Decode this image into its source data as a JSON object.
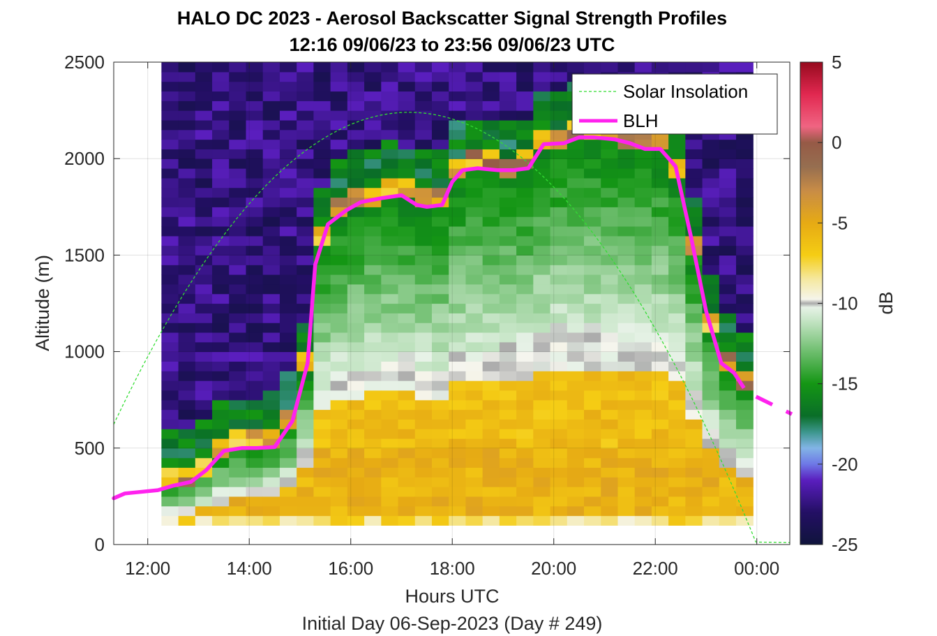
{
  "chart_data": {
    "type": "heatmap",
    "title": "HALO DC 2023 - Aerosol Backscatter Signal Strength Profiles",
    "subtitle": "12:16 09/06/23 to 23:56 09/06/23  UTC",
    "xlabel": "Hours UTC",
    "ylabel": "Altitude (m)",
    "footer": "Initial Day 06-Sep-2023 (Day # 249)",
    "colorbar_label": "dB",
    "x_axis": {
      "min_hours": 11.33,
      "max_hours": 24.65,
      "ticks": [
        "12:00",
        "14:00",
        "16:00",
        "18:00",
        "20:00",
        "22:00",
        "00:00"
      ],
      "tick_hours": [
        12,
        14,
        16,
        18,
        20,
        22,
        24
      ]
    },
    "y_axis": {
      "min": 0,
      "max": 2500,
      "ticks": [
        "0",
        "500",
        "1000",
        "1500",
        "2000",
        "2500"
      ],
      "tick_values": [
        0,
        500,
        1000,
        1500,
        2000,
        2500
      ]
    },
    "colorbar": {
      "min": -25,
      "max": 5,
      "ticks": [
        "5",
        "0",
        "-5",
        "-10",
        "-15",
        "-20",
        "-25"
      ],
      "tick_values": [
        5,
        0,
        -5,
        -10,
        -15,
        -20,
        -25
      ]
    },
    "grid": true,
    "legend": {
      "position": "top-right",
      "entries": [
        "Solar Insolation",
        "BLH"
      ]
    },
    "colors": {
      "solar": "#33dd33",
      "blh": "#ff22ee"
    },
    "heatmap": {
      "time_start_hours": 12.27,
      "time_step_hours": 0.333,
      "alt_start_m": 100,
      "alt_step_m": 50,
      "columns": 35,
      "rows": 48
    },
    "series": [
      {
        "name": "BLH",
        "x_hours": [
          11.33,
          11.55,
          11.83,
          12.2,
          12.5,
          12.85,
          13.15,
          13.5,
          13.85,
          14.15,
          14.5,
          14.85,
          15.15,
          15.3,
          15.55,
          15.9,
          16.2,
          16.6,
          17.0,
          17.3,
          17.5,
          17.8,
          18.0,
          18.2,
          18.5,
          18.9,
          19.2,
          19.5,
          19.8,
          20.2,
          20.5,
          20.8,
          21.2,
          21.5,
          21.8,
          22.1,
          22.4,
          22.7,
          23.0,
          23.3,
          23.55,
          23.8,
          24.05
        ],
        "y": [
          240,
          265,
          272,
          282,
          305,
          325,
          385,
          485,
          500,
          500,
          505,
          640,
          940,
          1450,
          1660,
          1730,
          1775,
          1795,
          1810,
          1760,
          1750,
          1760,
          1880,
          1940,
          1950,
          1940,
          1940,
          1950,
          2075,
          2080,
          2110,
          2110,
          2100,
          2080,
          2050,
          2050,
          1960,
          1600,
          1210,
          940,
          890,
          790,
          730
        ]
      },
      {
        "name": "Solar Insolation",
        "x_hours": [
          11.33,
          24.0,
          24.65
        ],
        "peak_hours": 17.15,
        "peak_y": 2240,
        "y_end": 10
      }
    ]
  }
}
